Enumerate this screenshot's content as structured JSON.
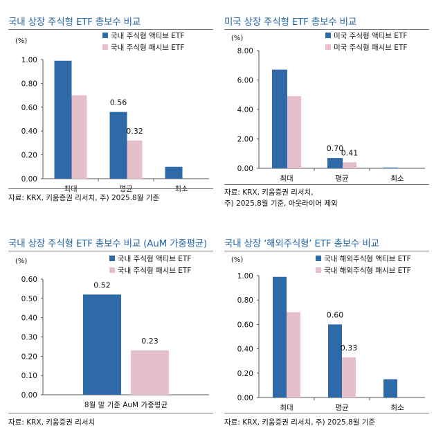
{
  "colors": {
    "active": "#2e6aa7",
    "passive": "#e6bfcb",
    "title": "#2466a8"
  },
  "panels": [
    {
      "title": "국내 상장 주식형 ETF 총보수 비교",
      "source": [
        "자료: KRX, 키움증권 리서치, 주) 2025.8월 기준"
      ],
      "chart_data": {
        "type": "bar",
        "unit_label": "(%)",
        "categories": [
          "최대",
          "평균",
          "최소"
        ],
        "ylim": [
          0,
          1.0
        ],
        "yticks": [
          "0.00",
          "0.20",
          "0.40",
          "0.60",
          "0.80",
          "1.00"
        ],
        "series": [
          {
            "name": "국내 주식형 액티브 ETF",
            "values": [
              0.99,
              0.56,
              0.1
            ],
            "labels": [
              "",
              "0.56",
              ""
            ]
          },
          {
            "name": "국내 주식형 패시브 ETF",
            "values": [
              0.7,
              0.32,
              0.0
            ],
            "labels": [
              "",
              "0.32",
              ""
            ]
          }
        ]
      }
    },
    {
      "title": "미국 상장 주식형 ETF 총보수 비교",
      "source": [
        "자료: KRX, 키움증권 리서치,",
        "주) 2025.8월 기준, 아웃라이어 제외"
      ],
      "chart_data": {
        "type": "bar",
        "unit_label": "(%)",
        "categories": [
          "최대",
          "평균",
          "최소"
        ],
        "ylim": [
          0,
          8.0
        ],
        "yticks": [
          "0.00",
          "2.00",
          "4.00",
          "6.00",
          "8.00"
        ],
        "series": [
          {
            "name": "미국 주식형 액티브 ETF",
            "values": [
              6.7,
              0.7,
              0.05
            ],
            "labels": [
              "",
              "0.70",
              ""
            ]
          },
          {
            "name": "미국 주식형 패시브 ETF",
            "values": [
              4.9,
              0.41,
              0.0
            ],
            "labels": [
              "",
              "0.41",
              ""
            ]
          }
        ]
      }
    },
    {
      "title": "국내 상장 주식형 ETF 총보수 비교 (AuM 가중평균)",
      "source": [
        "자료: KRX, 키움증권 리서치"
      ],
      "chart_data": {
        "type": "bar",
        "unit_label": "(%)",
        "categories": [
          "8월 말 기준 AuM 가중평균"
        ],
        "ylim": [
          0,
          0.6
        ],
        "yticks": [
          "0.00",
          "0.10",
          "0.20",
          "0.30",
          "0.40",
          "0.50",
          "0.60"
        ],
        "series": [
          {
            "name": "국내 주식형 액티브 ETF",
            "values": [
              0.52
            ],
            "labels": [
              "0.52"
            ]
          },
          {
            "name": "국내 주식형 패시브 ETF",
            "values": [
              0.23
            ],
            "labels": [
              "0.23"
            ]
          }
        ]
      }
    },
    {
      "title": "국내 상장 ‘해외주식형’ ETF 총보수 비교",
      "source": [
        "자료: KRX, 키움증권 리서치, 주) 2025.8월 기준"
      ],
      "chart_data": {
        "type": "bar",
        "unit_label": "(%)",
        "categories": [
          "최대",
          "평균",
          "최소"
        ],
        "ylim": [
          0,
          1.0
        ],
        "yticks": [
          "0.00",
          "0.20",
          "0.40",
          "0.60",
          "0.80",
          "1.00"
        ],
        "series": [
          {
            "name": "국내 해외주식형 액티브 ETF",
            "values": [
              0.99,
              0.6,
              0.15
            ],
            "labels": [
              "",
              "0.60",
              ""
            ]
          },
          {
            "name": "국내 해외주식형 패시브 ETF",
            "values": [
              0.7,
              0.33,
              0.0
            ],
            "labels": [
              "",
              "0.33",
              ""
            ]
          }
        ]
      }
    }
  ]
}
